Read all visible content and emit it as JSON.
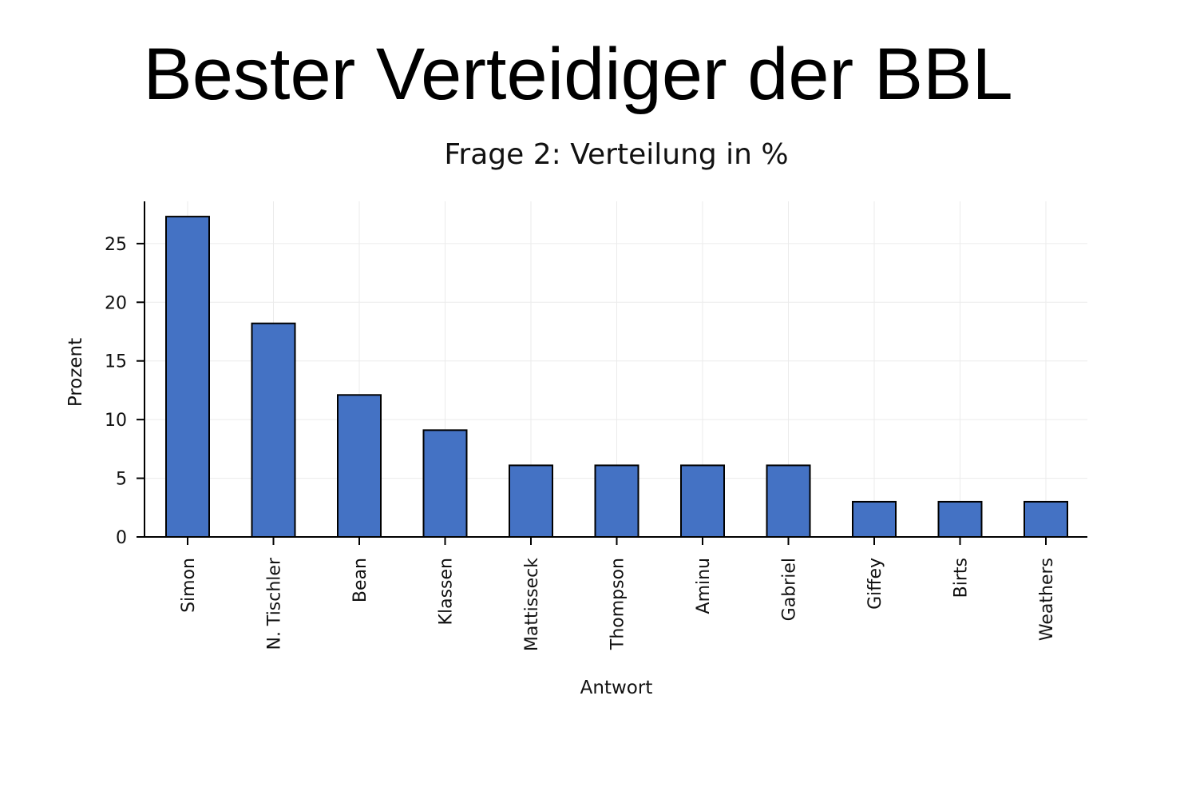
{
  "slide": {
    "title": "Bester Verteidiger der BBL"
  },
  "chart_data": {
    "type": "bar",
    "title": "Frage 2: Verteilung in %",
    "xlabel": "Antwort",
    "ylabel": "Prozent",
    "categories": [
      "Simon",
      "N. Tischler",
      "Bean",
      "Klassen",
      "Mattisseck",
      "Thompson",
      "Aminu",
      "Gabriel",
      "Giffey",
      "Birts",
      "Weathers"
    ],
    "values": [
      27.3,
      18.2,
      12.1,
      9.1,
      6.1,
      6.1,
      6.1,
      6.1,
      3.0,
      3.0,
      3.0
    ],
    "yticks": [
      0,
      5,
      10,
      15,
      20,
      25
    ],
    "ylim": [
      0,
      28.6
    ],
    "grid": true,
    "colors": {
      "bar_fill": "#4472c4",
      "bar_edge": "#000000",
      "grid": "#ebebeb",
      "axis": "#000000"
    }
  }
}
